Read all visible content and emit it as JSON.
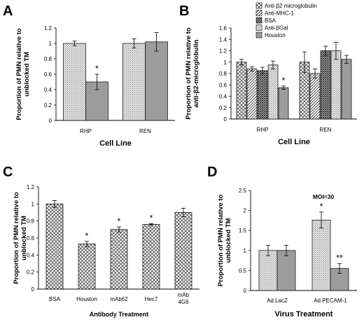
{
  "chart_data": [
    {
      "panel": "A",
      "type": "bar",
      "categories": [
        "RHP",
        "REN"
      ],
      "series": [
        {
          "values": [
            1.0,
            1.0
          ],
          "errors": [
            0.03,
            0.06
          ],
          "pattern": "dots"
        },
        {
          "values": [
            0.5,
            1.02
          ],
          "errors": [
            0.1,
            0.12
          ],
          "pattern": "gray"
        }
      ],
      "annotations": [
        {
          "category": 0,
          "series": 1,
          "text": "*"
        }
      ],
      "xlabel": "Cell Line",
      "ylabel": [
        "Proportion of PMN relative to",
        "unblocked TM"
      ],
      "ylim": [
        0,
        1.2
      ],
      "yticks": [
        0,
        0.2,
        0.4,
        0.6,
        0.8,
        1,
        1.2
      ]
    },
    {
      "panel": "B",
      "type": "bar",
      "categories": [
        "RHP",
        "REN"
      ],
      "series": [
        {
          "name": "Anti-β2 microglobulin",
          "values": [
            1.0,
            1.0
          ],
          "errors": [
            0.05,
            0.18
          ],
          "pattern": "cross"
        },
        {
          "name": "Anti-MHC-1",
          "values": [
            0.88,
            0.8
          ],
          "errors": [
            0.04,
            0.08
          ],
          "pattern": "hatch"
        },
        {
          "name": "BSA",
          "values": [
            0.85,
            1.2
          ],
          "errors": [
            0.06,
            0.08
          ],
          "pattern": "crossdense"
        },
        {
          "name": "Anti-βGal",
          "values": [
            0.95,
            1.2
          ],
          "errors": [
            0.07,
            0.15
          ],
          "pattern": "dots"
        },
        {
          "name": "Houston",
          "values": [
            0.55,
            1.05
          ],
          "errors": [
            0.03,
            0.07
          ],
          "pattern": "gray"
        }
      ],
      "annotations": [
        {
          "category": 0,
          "series": 4,
          "text": "*"
        }
      ],
      "xlabel": "Cell Line",
      "ylabel": [
        "Proportion of PMN relative to",
        "anti-β2-microglobulin"
      ],
      "ylim": [
        0,
        1.6
      ],
      "yticks": [
        0,
        0.2,
        0.4,
        0.6,
        0.8,
        1,
        1.2,
        1.4,
        1.6
      ],
      "legend": "top-right"
    },
    {
      "panel": "C",
      "type": "bar",
      "categories": [
        "BSA",
        "Houston",
        "mAb62",
        "Hec7",
        "mAb 4G6"
      ],
      "series": [
        {
          "values": [
            1.0,
            0.53,
            0.7,
            0.76,
            0.9
          ],
          "errors": [
            0.04,
            0.03,
            0.03,
            0.01,
            0.05
          ],
          "pattern": "cross"
        }
      ],
      "annotations": [
        {
          "category": 1,
          "series": 0,
          "text": "*"
        },
        {
          "category": 2,
          "series": 0,
          "text": "*"
        },
        {
          "category": 3,
          "series": 0,
          "text": "*"
        }
      ],
      "xlabel": "Antibody Treatment",
      "ylabel": [
        "Proportion of PMN relative to",
        "unblocked TM"
      ],
      "ylim": [
        0,
        1.2
      ],
      "yticks": [
        0,
        0.2,
        0.4,
        0.6,
        0.8,
        1,
        1.2
      ]
    },
    {
      "panel": "D",
      "type": "bar",
      "categories": [
        "Ad.LacZ",
        "Ad.PECAM-1"
      ],
      "series": [
        {
          "values": [
            1.0,
            1.76
          ],
          "errors": [
            0.13,
            0.2
          ],
          "pattern": "dots"
        },
        {
          "values": [
            1.0,
            0.55
          ],
          "errors": [
            0.13,
            0.12
          ],
          "pattern": "gray"
        }
      ],
      "annotations": [
        {
          "category": 1,
          "series": 0,
          "text": "*"
        },
        {
          "category": 1,
          "series": 1,
          "text": "**"
        }
      ],
      "subtitle": "MOI=30",
      "xlabel": "Virus Treatment",
      "ylabel": [
        "Proportion of PMN relative to",
        "unblocked TM"
      ],
      "ylim": [
        0,
        2.5
      ],
      "yticks": [
        0,
        0.5,
        1,
        1.5,
        2,
        2.5
      ]
    }
  ]
}
